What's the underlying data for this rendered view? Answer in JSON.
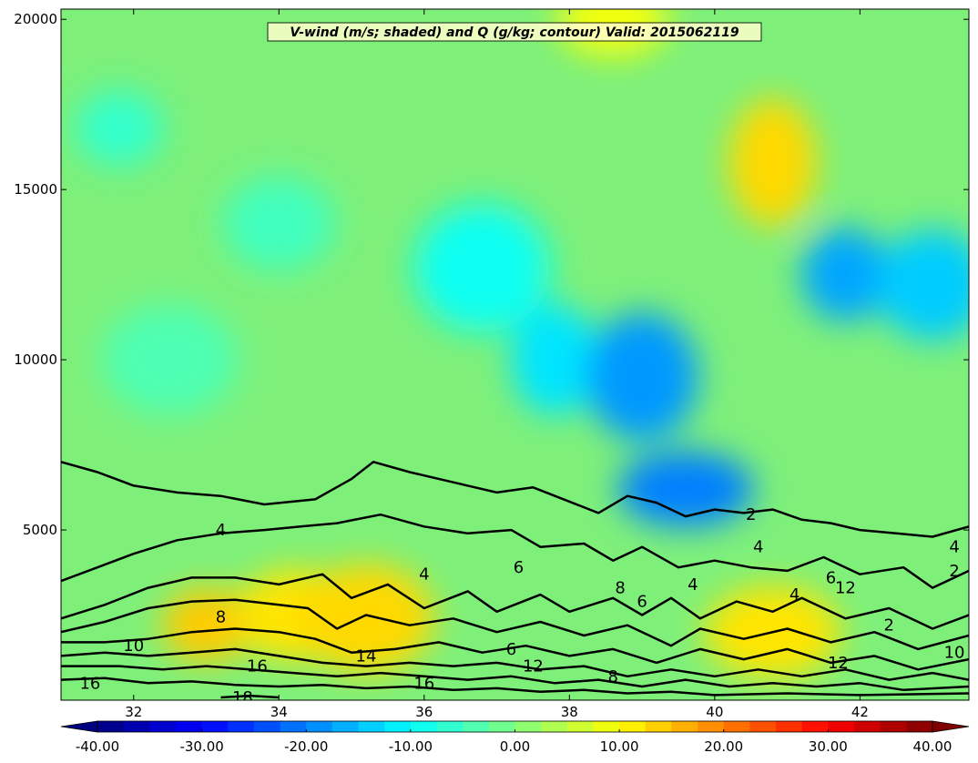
{
  "chart_data": {
    "type": "heatmap",
    "title": "V-wind (m/s; shaded) and Q (g/kg; contour) Valid: 2015062119",
    "xlabel": "",
    "ylabel": "",
    "xlim": [
      31,
      43.5
    ],
    "ylim": [
      0,
      20300
    ],
    "x_ticks": [
      32,
      34,
      36,
      38,
      40,
      42
    ],
    "x_tick_labels": [
      "32",
      "34",
      "36",
      "38",
      "40",
      "42"
    ],
    "y_ticks": [
      5000,
      10000,
      15000,
      20000
    ],
    "y_tick_labels": [
      "5000",
      "10000",
      "15000",
      "20000"
    ],
    "grid": false,
    "colorbar": {
      "min": -40,
      "max": 40,
      "step": 2.5,
      "extend": "both",
      "ticks": [
        -40,
        -30,
        -20,
        -10,
        0,
        10,
        20,
        30,
        40
      ],
      "tick_labels": [
        "-40.00",
        "-30.00",
        "-20.00",
        "-10.00",
        "0.00",
        "10.00",
        "20.00",
        "30.00",
        "40.00"
      ],
      "colormap": "jet"
    },
    "shaded_features": [
      {
        "x": 33.0,
        "y": 2200,
        "value": 14
      },
      {
        "x": 34.2,
        "y": 2500,
        "value": 12
      },
      {
        "x": 35.2,
        "y": 2400,
        "value": 13
      },
      {
        "x": 40.8,
        "y": 15800,
        "value": 13
      },
      {
        "x": 38.6,
        "y": 20000,
        "value": 9
      },
      {
        "x": 40.8,
        "y": 2000,
        "value": 12
      },
      {
        "x": 37.8,
        "y": 10000,
        "value": -12
      },
      {
        "x": 39.0,
        "y": 9500,
        "value": -18
      },
      {
        "x": 39.6,
        "y": 6200,
        "value": -20
      },
      {
        "x": 41.8,
        "y": 12500,
        "value": -17
      },
      {
        "x": 43.0,
        "y": 12200,
        "value": -14
      },
      {
        "x": 36.8,
        "y": 12700,
        "value": -9
      },
      {
        "x": 31.8,
        "y": 16800,
        "value": -6
      },
      {
        "x": 34.0,
        "y": 14000,
        "value": -5
      },
      {
        "x": 32.5,
        "y": 10000,
        "value": -4
      }
    ],
    "contour_levels": [
      2,
      4,
      6,
      8,
      10,
      12,
      14,
      16,
      18
    ],
    "contours": [
      {
        "level": 2,
        "points": [
          [
            31.0,
            7000
          ],
          [
            31.5,
            6700
          ],
          [
            32.0,
            6300
          ],
          [
            32.6,
            6100
          ],
          [
            33.2,
            6000
          ],
          [
            33.8,
            5750
          ],
          [
            34.5,
            5900
          ],
          [
            35.0,
            6500
          ],
          [
            35.3,
            7000
          ],
          [
            35.8,
            6700
          ],
          [
            36.4,
            6400
          ],
          [
            37.0,
            6100
          ],
          [
            37.5,
            6250
          ],
          [
            37.8,
            6000
          ],
          [
            38.4,
            5500
          ],
          [
            38.8,
            6000
          ],
          [
            39.2,
            5800
          ],
          [
            39.6,
            5400
          ],
          [
            40.0,
            5600
          ],
          [
            40.4,
            5500
          ],
          [
            40.8,
            5600
          ],
          [
            41.2,
            5300
          ],
          [
            41.6,
            5200
          ],
          [
            42.0,
            5000
          ],
          [
            42.5,
            4900
          ],
          [
            43.0,
            4800
          ],
          [
            43.5,
            5100
          ]
        ]
      },
      {
        "level": 4,
        "points": [
          [
            31.0,
            3500
          ],
          [
            31.5,
            3900
          ],
          [
            32.0,
            4300
          ],
          [
            32.6,
            4700
          ],
          [
            33.2,
            4900
          ],
          [
            33.8,
            5000
          ],
          [
            34.3,
            5100
          ],
          [
            34.8,
            5200
          ],
          [
            35.4,
            5450
          ],
          [
            36.0,
            5100
          ],
          [
            36.6,
            4900
          ],
          [
            37.2,
            5000
          ],
          [
            37.6,
            4500
          ],
          [
            38.2,
            4600
          ],
          [
            38.6,
            4100
          ],
          [
            39.0,
            4500
          ],
          [
            39.5,
            3900
          ],
          [
            40.0,
            4100
          ],
          [
            40.5,
            3900
          ],
          [
            41.0,
            3800
          ],
          [
            41.5,
            4200
          ],
          [
            42.0,
            3700
          ],
          [
            42.6,
            3900
          ],
          [
            43.0,
            3300
          ],
          [
            43.5,
            3800
          ]
        ]
      },
      {
        "level": 6,
        "points": [
          [
            31.0,
            2400
          ],
          [
            31.6,
            2800
          ],
          [
            32.2,
            3300
          ],
          [
            32.8,
            3600
          ],
          [
            33.4,
            3600
          ],
          [
            34.0,
            3400
          ],
          [
            34.6,
            3700
          ],
          [
            35.0,
            3000
          ],
          [
            35.5,
            3400
          ],
          [
            36.0,
            2700
          ],
          [
            36.6,
            3200
          ],
          [
            37.0,
            2600
          ],
          [
            37.6,
            3100
          ],
          [
            38.0,
            2600
          ],
          [
            38.6,
            3000
          ],
          [
            39.0,
            2500
          ],
          [
            39.4,
            3000
          ],
          [
            39.8,
            2400
          ],
          [
            40.3,
            2900
          ],
          [
            40.8,
            2600
          ],
          [
            41.2,
            3000
          ],
          [
            41.8,
            2400
          ],
          [
            42.4,
            2700
          ],
          [
            43.0,
            2100
          ],
          [
            43.5,
            2500
          ]
        ]
      },
      {
        "level": 8,
        "points": [
          [
            31.0,
            2000
          ],
          [
            31.6,
            2300
          ],
          [
            32.2,
            2700
          ],
          [
            32.8,
            2900
          ],
          [
            33.4,
            2950
          ],
          [
            34.0,
            2800
          ],
          [
            34.4,
            2700
          ],
          [
            34.8,
            2100
          ],
          [
            35.2,
            2500
          ],
          [
            35.8,
            2200
          ],
          [
            36.4,
            2400
          ],
          [
            37.0,
            2000
          ],
          [
            37.6,
            2300
          ],
          [
            38.2,
            1900
          ],
          [
            38.8,
            2200
          ],
          [
            39.4,
            1600
          ],
          [
            39.8,
            2100
          ],
          [
            40.4,
            1800
          ],
          [
            41.0,
            2100
          ],
          [
            41.6,
            1700
          ],
          [
            42.2,
            2000
          ],
          [
            42.8,
            1500
          ],
          [
            43.5,
            1900
          ]
        ]
      },
      {
        "level": 10,
        "points": [
          [
            31.0,
            1700
          ],
          [
            31.6,
            1700
          ],
          [
            32.2,
            1800
          ],
          [
            32.8,
            2000
          ],
          [
            33.4,
            2100
          ],
          [
            34.0,
            2000
          ],
          [
            34.5,
            1800
          ],
          [
            35.0,
            1400
          ],
          [
            35.6,
            1500
          ],
          [
            36.2,
            1700
          ],
          [
            36.8,
            1400
          ],
          [
            37.4,
            1600
          ],
          [
            38.0,
            1300
          ],
          [
            38.6,
            1500
          ],
          [
            39.2,
            1100
          ],
          [
            39.8,
            1500
          ],
          [
            40.4,
            1200
          ],
          [
            41.0,
            1500
          ],
          [
            41.6,
            1100
          ],
          [
            42.2,
            1300
          ],
          [
            42.8,
            900
          ],
          [
            43.5,
            1200
          ]
        ]
      },
      {
        "level": 12,
        "points": [
          [
            31.0,
            1300
          ],
          [
            31.6,
            1400
          ],
          [
            32.2,
            1300
          ],
          [
            32.8,
            1400
          ],
          [
            33.4,
            1500
          ],
          [
            34.0,
            1300
          ],
          [
            34.6,
            1100
          ],
          [
            35.2,
            1000
          ],
          [
            35.8,
            1100
          ],
          [
            36.4,
            1000
          ],
          [
            37.0,
            1100
          ],
          [
            37.6,
            900
          ],
          [
            38.2,
            1000
          ],
          [
            38.8,
            700
          ],
          [
            39.4,
            900
          ],
          [
            40.0,
            700
          ],
          [
            40.6,
            900
          ],
          [
            41.2,
            700
          ],
          [
            41.8,
            900
          ],
          [
            42.4,
            600
          ],
          [
            43.0,
            800
          ],
          [
            43.5,
            600
          ]
        ]
      },
      {
        "level": 14,
        "points": [
          [
            31.0,
            1000
          ],
          [
            31.8,
            1000
          ],
          [
            32.4,
            900
          ],
          [
            33.0,
            1000
          ],
          [
            33.6,
            900
          ],
          [
            34.2,
            800
          ],
          [
            34.8,
            700
          ],
          [
            35.4,
            800
          ],
          [
            36.0,
            700
          ],
          [
            36.6,
            600
          ],
          [
            37.2,
            700
          ],
          [
            37.8,
            500
          ],
          [
            38.4,
            600
          ],
          [
            39.0,
            400
          ],
          [
            39.6,
            600
          ],
          [
            40.2,
            400
          ],
          [
            40.8,
            500
          ],
          [
            41.4,
            400
          ],
          [
            42.0,
            500
          ],
          [
            42.6,
            300
          ],
          [
            43.5,
            400
          ]
        ]
      },
      {
        "level": 16,
        "points": [
          [
            31.0,
            600
          ],
          [
            31.6,
            650
          ],
          [
            32.2,
            500
          ],
          [
            32.8,
            550
          ],
          [
            33.4,
            450
          ],
          [
            34.0,
            400
          ],
          [
            34.6,
            450
          ],
          [
            35.2,
            350
          ],
          [
            35.8,
            400
          ],
          [
            36.4,
            300
          ],
          [
            37.0,
            350
          ],
          [
            37.6,
            250
          ],
          [
            38.2,
            300
          ],
          [
            38.8,
            200
          ],
          [
            39.4,
            250
          ],
          [
            40.0,
            150
          ],
          [
            41.0,
            200
          ],
          [
            42.0,
            150
          ],
          [
            43.5,
            200
          ]
        ]
      },
      {
        "level": 18,
        "points": [
          [
            33.2,
            80
          ],
          [
            33.6,
            130
          ],
          [
            34.0,
            80
          ]
        ]
      }
    ],
    "contour_labels": [
      {
        "text": "4",
        "x": 33.2,
        "y": 5000
      },
      {
        "text": "2",
        "x": 40.5,
        "y": 5450
      },
      {
        "text": "4",
        "x": 36.0,
        "y": 3700
      },
      {
        "text": "8",
        "x": 33.2,
        "y": 2450
      },
      {
        "text": "6",
        "x": 37.3,
        "y": 3900
      },
      {
        "text": "8",
        "x": 38.7,
        "y": 3300
      },
      {
        "text": "6",
        "x": 39.0,
        "y": 2900
      },
      {
        "text": "4",
        "x": 39.7,
        "y": 3400
      },
      {
        "text": "4",
        "x": 40.6,
        "y": 4500
      },
      {
        "text": "4",
        "x": 41.1,
        "y": 3100
      },
      {
        "text": "6",
        "x": 41.6,
        "y": 3600
      },
      {
        "text": "12",
        "x": 41.8,
        "y": 3300
      },
      {
        "text": "12",
        "x": 41.7,
        "y": 1100
      },
      {
        "text": "4",
        "x": 43.3,
        "y": 4500
      },
      {
        "text": "2",
        "x": 43.3,
        "y": 3800
      },
      {
        "text": "10",
        "x": 43.3,
        "y": 1400
      },
      {
        "text": "2",
        "x": 42.4,
        "y": 2200
      },
      {
        "text": "10",
        "x": 32.0,
        "y": 1600
      },
      {
        "text": "16",
        "x": 31.4,
        "y": 500
      },
      {
        "text": "16",
        "x": 33.7,
        "y": 1000
      },
      {
        "text": "14",
        "x": 35.2,
        "y": 1300
      },
      {
        "text": "16",
        "x": 36.0,
        "y": 500
      },
      {
        "text": "6",
        "x": 37.2,
        "y": 1500
      },
      {
        "text": "12",
        "x": 37.5,
        "y": 1000
      },
      {
        "text": "8",
        "x": 38.6,
        "y": 700
      },
      {
        "text": "18",
        "x": 33.5,
        "y": 80
      }
    ]
  }
}
